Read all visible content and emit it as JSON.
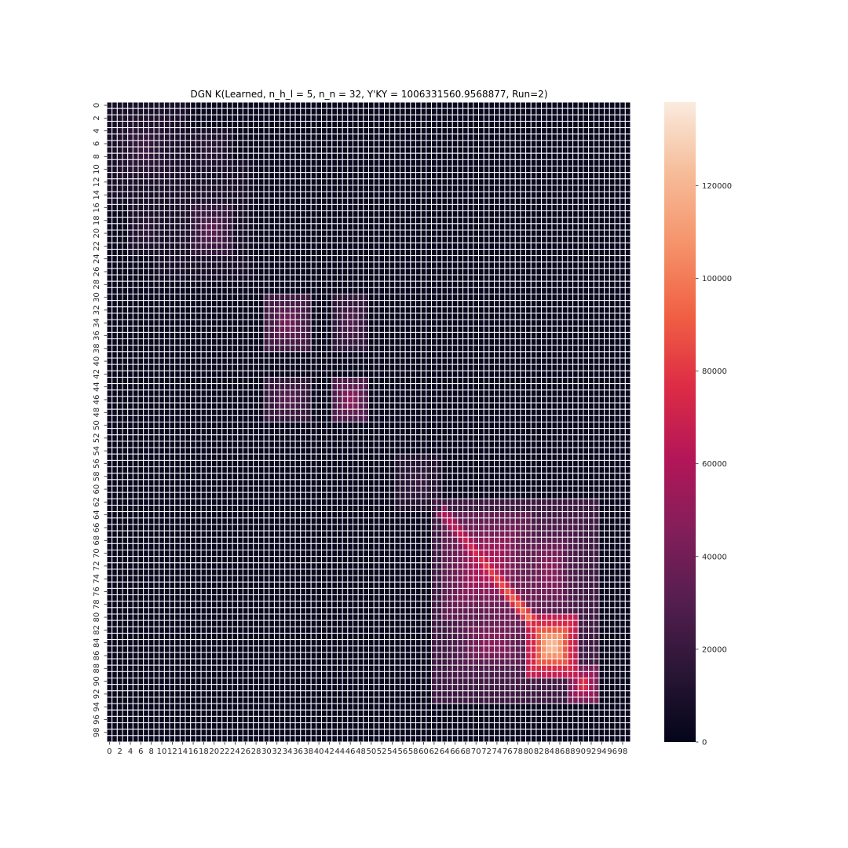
{
  "chart_data": {
    "type": "heatmap",
    "title": "DGN K(Learned, n_h_l = 5, n_n = 32, Y'KY = 1006331560.9568877, Run=2)",
    "rows": 100,
    "cols": 100,
    "x_tick_labels": [
      "0",
      "2",
      "4",
      "6",
      "8",
      "10",
      "12",
      "14",
      "16",
      "18",
      "20",
      "22",
      "24",
      "26",
      "28",
      "30",
      "32",
      "34",
      "36",
      "38",
      "40",
      "42",
      "44",
      "46",
      "48",
      "50",
      "52",
      "54",
      "56",
      "58",
      "60",
      "62",
      "64",
      "66",
      "68",
      "70",
      "72",
      "74",
      "76",
      "78",
      "80",
      "82",
      "84",
      "86",
      "88",
      "90",
      "92",
      "94",
      "96",
      "98"
    ],
    "y_tick_labels": [
      "0",
      "2",
      "4",
      "6",
      "8",
      "10",
      "12",
      "14",
      "16",
      "18",
      "20",
      "22",
      "24",
      "26",
      "28",
      "30",
      "32",
      "34",
      "36",
      "38",
      "40",
      "42",
      "44",
      "46",
      "48",
      "50",
      "52",
      "54",
      "56",
      "58",
      "60",
      "62",
      "64",
      "66",
      "68",
      "70",
      "72",
      "74",
      "76",
      "78",
      "80",
      "82",
      "84",
      "86",
      "88",
      "90",
      "92",
      "94",
      "96",
      "98"
    ],
    "colorbar": {
      "min": 0,
      "max": 138000,
      "ticks": [
        0,
        20000,
        40000,
        60000,
        80000,
        100000,
        120000
      ],
      "tick_labels": [
        "0",
        "20000",
        "40000",
        "60000",
        "80000",
        "100000",
        "120000"
      ],
      "colormap": "rocket",
      "stops": [
        "#03051a",
        "#2a1636",
        "#551e4f",
        "#841e5a",
        "#b41658",
        "#dd2c45",
        "#f06043",
        "#f5936a",
        "#f6bc99",
        "#faebdd"
      ]
    },
    "grid_line_color": "#ffffff",
    "blocks": [
      {
        "rows": [
          1,
          14
        ],
        "cols": [
          1,
          14
        ],
        "peak": 14000
      },
      {
        "rows": [
          3,
          10
        ],
        "cols": [
          3,
          10
        ],
        "peak": 20000
      },
      {
        "rows": [
          5,
          9
        ],
        "cols": [
          5,
          8
        ],
        "peak": 24000
      },
      {
        "rows": [
          10,
          26
        ],
        "cols": [
          10,
          26
        ],
        "peak": 12000
      },
      {
        "rows": [
          17,
          22
        ],
        "cols": [
          17,
          22
        ],
        "peak": 33000
      },
      {
        "rows": [
          17,
          22
        ],
        "cols": [
          5,
          9
        ],
        "peak": 16000
      },
      {
        "rows": [
          5,
          9
        ],
        "cols": [
          17,
          22
        ],
        "peak": 16000
      },
      {
        "rows": [
          31,
          37
        ],
        "cols": [
          31,
          37
        ],
        "peak": 40000
      },
      {
        "rows": [
          31,
          37
        ],
        "cols": [
          44,
          48
        ],
        "peak": 30000
      },
      {
        "rows": [
          44,
          48
        ],
        "cols": [
          31,
          37
        ],
        "peak": 32000
      },
      {
        "rows": [
          44,
          48
        ],
        "cols": [
          44,
          48
        ],
        "peak": 50000
      },
      {
        "rows": [
          56,
          62
        ],
        "cols": [
          56,
          62
        ],
        "peak": 20000
      },
      {
        "rows": [
          63,
          92
        ],
        "cols": [
          63,
          92
        ],
        "peak": 40000
      },
      {
        "rows": [
          65,
          79
        ],
        "cols": [
          65,
          79
        ],
        "peak": 62000
      },
      {
        "rows": [
          66,
          80
        ],
        "cols": [
          80,
          88
        ],
        "peak": 48000
      },
      {
        "rows": [
          80,
          88
        ],
        "cols": [
          66,
          80
        ],
        "peak": 48000
      },
      {
        "rows": [
          81,
          88
        ],
        "cols": [
          81,
          88
        ],
        "peak": 122000
      },
      {
        "rows": [
          89,
          92
        ],
        "cols": [
          89,
          92
        ],
        "peak": 78000
      }
    ],
    "diagonal": {
      "from": 64,
      "to": 80,
      "start_value": 60000,
      "end_value": 98000
    }
  }
}
